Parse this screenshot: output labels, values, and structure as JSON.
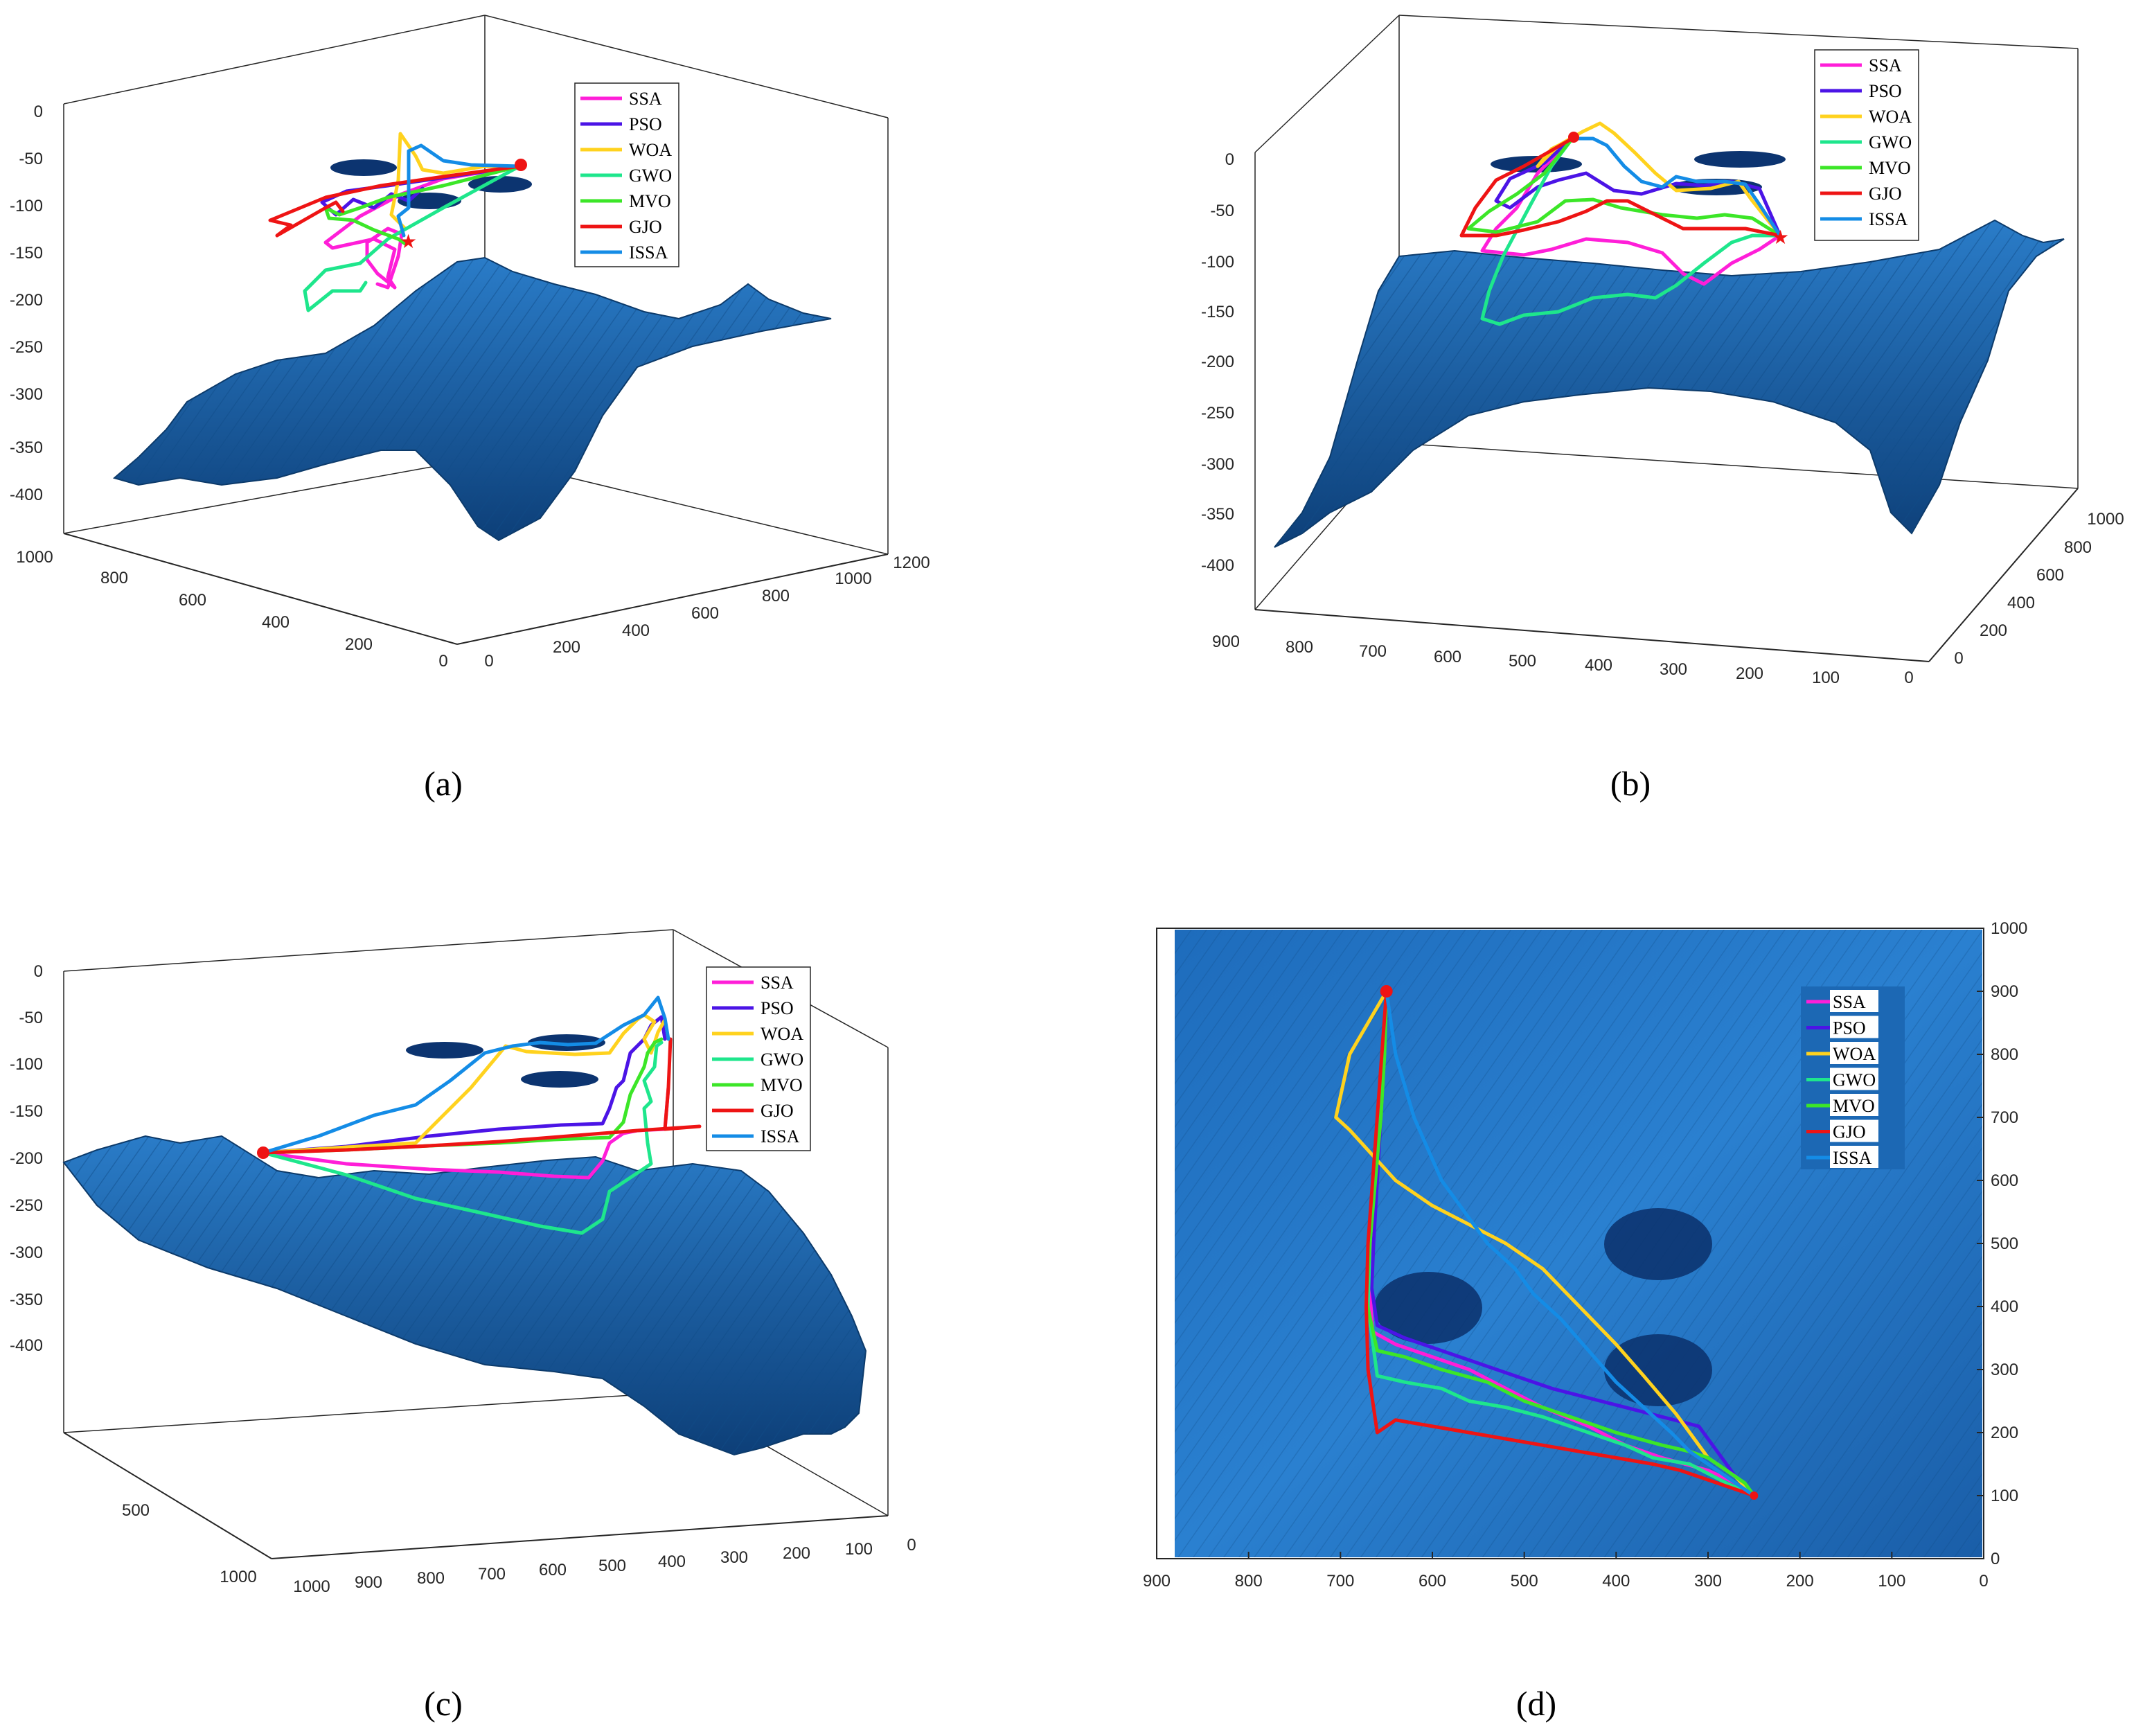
{
  "chart_data": [
    {
      "type": "line",
      "panel": "(a)",
      "caption": "(a)",
      "z_ticks": [
        "0",
        "-50",
        "-100",
        "-150",
        "-200",
        "-250",
        "-300",
        "-350",
        "-400"
      ],
      "y_ticks": [
        "1000",
        "800",
        "600",
        "400",
        "200",
        "0"
      ],
      "x_ticks": [
        "0",
        "200",
        "400",
        "600",
        "800",
        "1000",
        "1200"
      ],
      "legend": [
        "SSA",
        "PSO",
        "WOA",
        "GWO",
        "MVO",
        "GJO",
        "ISSA"
      ],
      "legend_placement": "top-right"
    },
    {
      "type": "line",
      "panel": "(b)",
      "caption": "(b)",
      "z_ticks": [
        "0",
        "-50",
        "-100",
        "-150",
        "-200",
        "-250",
        "-300",
        "-350",
        "-400"
      ],
      "x_ticks": [
        "900",
        "800",
        "700",
        "600",
        "500",
        "400",
        "300",
        "200",
        "100",
        "0"
      ],
      "y_ticks": [
        "0",
        "200",
        "400",
        "600",
        "800",
        "1000"
      ],
      "legend": [
        "SSA",
        "PSO",
        "WOA",
        "GWO",
        "MVO",
        "GJO",
        "ISSA"
      ],
      "legend_placement": "top-right"
    },
    {
      "type": "line",
      "panel": "(c)",
      "caption": "(c)",
      "z_ticks": [
        "0",
        "-50",
        "-100",
        "-150",
        "-200",
        "-250",
        "-300",
        "-350",
        "-400"
      ],
      "y_ticks": [
        "500",
        "1000"
      ],
      "x_ticks": [
        "1000",
        "900",
        "800",
        "700",
        "600",
        "500",
        "400",
        "300",
        "200",
        "100",
        "0"
      ],
      "legend": [
        "SSA",
        "PSO",
        "WOA",
        "GWO",
        "MVO",
        "GJO",
        "ISSA"
      ],
      "legend_placement": "top-right"
    },
    {
      "type": "line",
      "panel": "(d)",
      "caption": "(d)",
      "x_ticks": [
        "900",
        "800",
        "700",
        "600",
        "500",
        "400",
        "300",
        "200",
        "100",
        "0"
      ],
      "y_ticks": [
        "1000",
        "900",
        "800",
        "700",
        "600",
        "500",
        "400",
        "300",
        "200",
        "100",
        "0"
      ],
      "xlim": [
        900,
        0
      ],
      "ylim": [
        0,
        1000
      ],
      "start": {
        "x": 650,
        "y": 900
      },
      "goal": {
        "x": 250,
        "y": 100
      },
      "legend": [
        "SSA",
        "PSO",
        "WOA",
        "GWO",
        "MVO",
        "GJO",
        "ISSA"
      ],
      "legend_placement": "top-right",
      "series": [
        {
          "name": "SSA",
          "x": [
            650,
            653,
            657,
            662,
            667,
            668,
            665,
            640,
            600,
            560,
            520,
            480,
            430,
            390,
            350,
            300,
            270,
            250
          ],
          "y": [
            900,
            800,
            700,
            600,
            500,
            420,
            360,
            340,
            320,
            300,
            270,
            240,
            210,
            180,
            160,
            140,
            120,
            100
          ]
        },
        {
          "name": "PSO",
          "x": [
            650,
            652,
            656,
            660,
            664,
            666,
            660,
            630,
            590,
            550,
            510,
            470,
            430,
            390,
            350,
            310,
            290,
            270,
            250
          ],
          "y": [
            900,
            800,
            700,
            600,
            500,
            430,
            370,
            350,
            330,
            310,
            290,
            270,
            255,
            240,
            225,
            210,
            170,
            130,
            100
          ]
        },
        {
          "name": "WOA",
          "x": [
            650,
            690,
            705,
            690,
            640,
            600,
            560,
            520,
            480,
            440,
            400,
            370,
            335,
            320,
            300,
            270,
            250
          ],
          "y": [
            900,
            800,
            700,
            680,
            600,
            560,
            530,
            500,
            460,
            400,
            340,
            290,
            230,
            200,
            160,
            130,
            100
          ]
        },
        {
          "name": "GWO",
          "x": [
            650,
            653,
            658,
            663,
            668,
            670,
            660,
            630,
            590,
            560,
            520,
            480,
            430,
            390,
            360,
            320,
            280,
            250
          ],
          "y": [
            900,
            800,
            700,
            600,
            500,
            400,
            290,
            280,
            270,
            250,
            240,
            225,
            200,
            180,
            160,
            150,
            120,
            100
          ]
        },
        {
          "name": "MVO",
          "x": [
            650,
            652,
            656,
            662,
            668,
            672,
            660,
            630,
            590,
            540,
            500,
            440,
            400,
            350,
            320,
            300,
            280,
            260,
            250
          ],
          "y": [
            900,
            800,
            700,
            600,
            500,
            410,
            330,
            320,
            300,
            280,
            250,
            220,
            200,
            180,
            170,
            160,
            140,
            120,
            100
          ]
        },
        {
          "name": "GJO",
          "x": [
            650,
            655,
            660,
            665,
            670,
            672,
            670,
            660,
            640,
            600,
            560,
            520,
            480,
            440,
            400,
            360,
            330,
            300,
            270,
            250
          ],
          "y": [
            900,
            800,
            700,
            600,
            500,
            400,
            300,
            200,
            220,
            210,
            200,
            190,
            180,
            170,
            160,
            150,
            140,
            125,
            110,
            100
          ]
        },
        {
          "name": "ISSA",
          "x": [
            650,
            640,
            620,
            590,
            560,
            540,
            510,
            490,
            460,
            430,
            400,
            370,
            340,
            320,
            300,
            270,
            250
          ],
          "y": [
            900,
            800,
            700,
            600,
            540,
            500,
            460,
            420,
            380,
            330,
            280,
            240,
            200,
            170,
            150,
            120,
            100
          ]
        }
      ]
    }
  ],
  "colors": {
    "SSA": "#ff1ed8",
    "PSO": "#4b14e6",
    "WOA": "#ffd21e",
    "GWO": "#1ee68c",
    "MVO": "#3ce628",
    "GJO": "#ee1414",
    "ISSA": "#148ce6",
    "terrain": "#1c68b4",
    "terrain_dark": "#0c3a6a",
    "obstacle": "#0c3470",
    "start": "#ee1414"
  }
}
